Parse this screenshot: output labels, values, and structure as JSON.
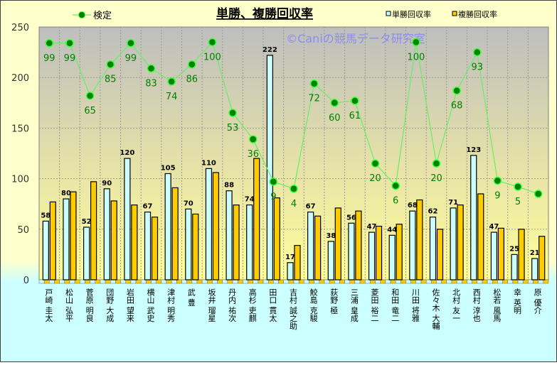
{
  "chart_data": {
    "type": "bar",
    "title": "単勝、複勝回収率",
    "watermark": "©Caniの競馬データ研究室",
    "ylim": [
      0,
      250
    ],
    "yticks": [
      0,
      50,
      100,
      150,
      200,
      250
    ],
    "grid": true,
    "legend": {
      "line": "検定",
      "bar1": "単勝回収率",
      "bar2": "複勝回収率"
    },
    "categories": [
      "戸崎 圭太",
      "松山 弘平",
      "菅原 明良",
      "団野 大成",
      "岩田 望来",
      "横山 武史",
      "津村 明秀",
      "武 豊",
      "坂井 瑠星",
      "丹内 祐次",
      "高杉 吏麒",
      "田口 貫太",
      "吉村 誠之助",
      "鮫島 克駿",
      "荻野 極",
      "三浦 皇成",
      "菱田 裕二",
      "和田 竜二",
      "川田 将雅",
      "佐々木 大輔",
      "北村 友一",
      "西村 淳也",
      "松若 風馬",
      "幸 英明",
      "原 優介"
    ],
    "series": [
      {
        "name": "単勝回収率",
        "color": "#CCFFFF",
        "values": [
          58,
          80,
          52,
          90,
          120,
          67,
          105,
          70,
          110,
          88,
          74,
          222,
          17,
          67,
          38,
          56,
          47,
          44,
          68,
          62,
          71,
          123,
          47,
          25,
          21
        ]
      },
      {
        "name": "複勝回収率",
        "color": "#FFCC00",
        "values": [
          77,
          87,
          97,
          78,
          74,
          62,
          91,
          65,
          106,
          74,
          120,
          81,
          34,
          63,
          71,
          68,
          53,
          55,
          79,
          50,
          74,
          85,
          51,
          50,
          43
        ]
      }
    ],
    "kentei": {
      "name": "検定",
      "color": "#008000",
      "labels": [
        "99",
        "99",
        "65",
        "85",
        "99",
        "83",
        "74",
        "86",
        "100",
        "53",
        "36",
        "9",
        "4",
        "72",
        "60",
        "61",
        "20",
        "6",
        "100",
        "20",
        "68",
        "93",
        "9",
        "5",
        ""
      ],
      "plot_values": [
        234,
        234,
        182,
        213,
        234,
        209,
        196,
        213,
        235,
        165,
        139,
        97,
        90,
        194,
        175,
        177,
        115,
        93,
        235,
        115,
        187,
        225,
        98,
        92,
        85
      ]
    }
  }
}
